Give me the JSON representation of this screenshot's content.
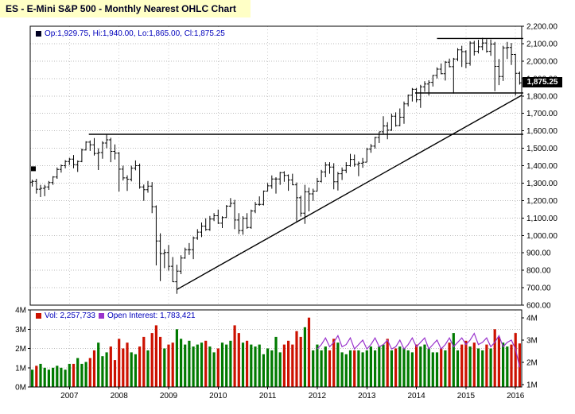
{
  "header": {
    "title": "ES - E-Mini S&P 500 - Monthly Nearest OHLC Chart",
    "banner_color": "#ffffc6"
  },
  "main_chart": {
    "legend": "Op:1,929.75, Hi:1,940.00, Lo:1,865.00, Cl:1,875.25",
    "last_price_label": "1,875.25",
    "left_marker_price": 1382,
    "y_ticks": [
      "2,200.00",
      "2,100.00",
      "2,000.00",
      "1,900.00",
      "1,800.00",
      "1,700.00",
      "1,600.00",
      "1,500.00",
      "1,400.00",
      "1,300.00",
      "1,200.00",
      "1,100.00",
      "1,000.00",
      "900.00",
      "800.00",
      "700.00",
      "600.00"
    ]
  },
  "volume_chart": {
    "vol_label": "Vol: 2,257,733",
    "oi_label": "Open Interest: 1,783,421",
    "left_ticks": [
      "4M",
      "3M",
      "2M",
      "1M",
      "0M"
    ],
    "right_ticks": [
      "4M",
      "3M",
      "2M",
      "1M"
    ]
  },
  "x_axis": {
    "years": [
      "2007",
      "2008",
      "2009",
      "2010",
      "2011",
      "2012",
      "2013",
      "2014",
      "2015",
      "2016"
    ]
  },
  "colors": {
    "up": "#007a00",
    "down": "#cc1100",
    "oi_line": "#9933cc",
    "ohlc": "#000000",
    "trendline": "#000000",
    "legend_text": "#0000bb"
  },
  "chart_data": [
    {
      "type": "ohlc",
      "title": "ES - E-Mini S&P 500 - Monthly Nearest OHLC Chart",
      "freq": "monthly",
      "x_start": "2006-04",
      "x_end": "2016-02",
      "first_month": 4,
      "first_year": 2006,
      "ylim": [
        600,
        2200
      ],
      "last": {
        "open": 1929.75,
        "high": 1940.0,
        "low": 1865.0,
        "close": 1875.25
      },
      "bars": [
        [
          1305,
          1320,
          1280,
          1310
        ],
        [
          1310,
          1325,
          1240,
          1265
        ],
        [
          1265,
          1290,
          1220,
          1270
        ],
        [
          1270,
          1290,
          1225,
          1278
        ],
        [
          1278,
          1312,
          1261,
          1303
        ],
        [
          1303,
          1340,
          1290,
          1335
        ],
        [
          1335,
          1390,
          1325,
          1378
        ],
        [
          1378,
          1407,
          1360,
          1400
        ],
        [
          1400,
          1432,
          1385,
          1424
        ],
        [
          1424,
          1445,
          1404,
          1438
        ],
        [
          1438,
          1461,
          1385,
          1406
        ],
        [
          1406,
          1430,
          1364,
          1424
        ],
        [
          1424,
          1498,
          1420,
          1490
        ],
        [
          1490,
          1540,
          1487,
          1535
        ],
        [
          1535,
          1545,
          1485,
          1520
        ],
        [
          1520,
          1558,
          1458,
          1470
        ],
        [
          1470,
          1500,
          1375,
          1475
        ],
        [
          1475,
          1540,
          1440,
          1530
        ],
        [
          1530,
          1580,
          1500,
          1548
        ],
        [
          1548,
          1560,
          1420,
          1482
        ],
        [
          1482,
          1522,
          1435,
          1472
        ],
        [
          1472,
          1478,
          1252,
          1380
        ],
        [
          1380,
          1400,
          1315,
          1330
        ],
        [
          1330,
          1345,
          1255,
          1322
        ],
        [
          1322,
          1400,
          1310,
          1386
        ],
        [
          1386,
          1430,
          1373,
          1400
        ],
        [
          1400,
          1412,
          1268,
          1278
        ],
        [
          1278,
          1292,
          1198,
          1262
        ],
        [
          1262,
          1312,
          1245,
          1283
        ],
        [
          1283,
          1306,
          1128,
          1165
        ],
        [
          1165,
          1172,
          828,
          968
        ],
        [
          968,
          1012,
          738,
          895
        ],
        [
          895,
          920,
          812,
          902
        ],
        [
          902,
          945,
          798,
          823
        ],
        [
          823,
          876,
          732,
          734
        ],
        [
          734,
          832,
          665,
          795
        ],
        [
          795,
          886,
          778,
          870
        ],
        [
          870,
          930,
          866,
          918
        ],
        [
          918,
          956,
          888,
          918
        ],
        [
          918,
          994,
          864,
          985
        ],
        [
          985,
          1036,
          975,
          1019
        ],
        [
          1019,
          1074,
          990,
          1053
        ],
        [
          1053,
          1098,
          1026,
          1034
        ],
        [
          1034,
          1112,
          1026,
          1094
        ],
        [
          1094,
          1128,
          1082,
          1113
        ],
        [
          1113,
          1148,
          1066,
          1070
        ],
        [
          1070,
          1110,
          1042,
          1103
        ],
        [
          1103,
          1174,
          1100,
          1168
        ],
        [
          1168,
          1214,
          1163,
          1184
        ],
        [
          1184,
          1204,
          1036,
          1088
        ],
        [
          1088,
          1128,
          1008,
          1028
        ],
        [
          1028,
          1110,
          1004,
          1098
        ],
        [
          1098,
          1128,
          1038,
          1046
        ],
        [
          1046,
          1148,
          1038,
          1140
        ],
        [
          1140,
          1192,
          1128,
          1178
        ],
        [
          1178,
          1224,
          1170,
          1178
        ],
        [
          1178,
          1258,
          1172,
          1254
        ],
        [
          1254,
          1300,
          1254,
          1284
        ],
        [
          1284,
          1344,
          1268,
          1324
        ],
        [
          1324,
          1334,
          1240,
          1324
        ],
        [
          1324,
          1364,
          1290,
          1360
        ],
        [
          1360,
          1368,
          1308,
          1344
        ],
        [
          1344,
          1350,
          1256,
          1318
        ],
        [
          1318,
          1354,
          1288,
          1290
        ],
        [
          1290,
          1304,
          1074,
          1216
        ],
        [
          1216,
          1228,
          1108,
          1128
        ],
        [
          1128,
          1290,
          1066,
          1250
        ],
        [
          1250,
          1274,
          1138,
          1238
        ],
        [
          1238,
          1268,
          1198,
          1254
        ],
        [
          1254,
          1330,
          1254,
          1310
        ],
        [
          1310,
          1376,
          1304,
          1364
        ],
        [
          1364,
          1420,
          1334,
          1404
        ],
        [
          1404,
          1420,
          1354,
          1392
        ],
        [
          1392,
          1414,
          1264,
          1308
        ],
        [
          1308,
          1364,
          1258,
          1354
        ],
        [
          1354,
          1390,
          1318,
          1374
        ],
        [
          1374,
          1420,
          1358,
          1400
        ],
        [
          1400,
          1468,
          1394,
          1436
        ],
        [
          1436,
          1464,
          1394,
          1408
        ],
        [
          1408,
          1424,
          1340,
          1414
        ],
        [
          1414,
          1444,
          1388,
          1420
        ],
        [
          1420,
          1502,
          1420,
          1495
        ],
        [
          1495,
          1524,
          1474,
          1512
        ],
        [
          1512,
          1566,
          1498,
          1562
        ],
        [
          1562,
          1594,
          1530,
          1594
        ],
        [
          1594,
          1684,
          1580,
          1628
        ],
        [
          1628,
          1650,
          1552,
          1604
        ],
        [
          1604,
          1698,
          1600,
          1684
        ],
        [
          1684,
          1706,
          1624,
          1630
        ],
        [
          1630,
          1728,
          1626,
          1678
        ],
        [
          1678,
          1768,
          1640,
          1754
        ],
        [
          1754,
          1808,
          1740,
          1804
        ],
        [
          1804,
          1846,
          1768,
          1838
        ],
        [
          1838,
          1846,
          1764,
          1778
        ],
        [
          1778,
          1864,
          1732,
          1852
        ],
        [
          1852,
          1884,
          1824,
          1868
        ],
        [
          1868,
          1890,
          1802,
          1878
        ],
        [
          1878,
          1920,
          1854,
          1918
        ],
        [
          1918,
          1964,
          1900,
          1954
        ],
        [
          1954,
          1986,
          1924,
          1928
        ],
        [
          1928,
          2000,
          1888,
          1994
        ],
        [
          1994,
          2014,
          1964,
          1968
        ],
        [
          1968,
          2018,
          1814,
          2012
        ],
        [
          2012,
          2074,
          2000,
          2064
        ],
        [
          2064,
          2088,
          1966,
          2054
        ],
        [
          2054,
          2062,
          1960,
          1988
        ],
        [
          1988,
          2114,
          1974,
          2104
        ],
        [
          2104,
          2116,
          2032,
          2056
        ],
        [
          2056,
          2122,
          2044,
          2082
        ],
        [
          2082,
          2134,
          2062,
          2104
        ],
        [
          2104,
          2126,
          2048,
          2056
        ],
        [
          2056,
          2124,
          2030,
          2098
        ],
        [
          2098,
          2110,
          1828,
          1970
        ],
        [
          1970,
          2012,
          1862,
          1912
        ],
        [
          1912,
          2088,
          1886,
          2076
        ],
        [
          2076,
          2110,
          2012,
          2078
        ],
        [
          2078,
          2104,
          1978,
          2038
        ],
        [
          2038,
          2042,
          1802,
          1930
        ],
        [
          1929.75,
          1940,
          1865,
          1875.25
        ]
      ],
      "trendlines": [
        {
          "kind": "horizontal",
          "price": 2130,
          "from": 98,
          "to": 121
        },
        {
          "kind": "horizontal",
          "price": 1817,
          "from": 92.7,
          "to": 121
        },
        {
          "kind": "horizontal",
          "price": 1580,
          "from": 13.7,
          "to": 121
        },
        {
          "kind": "diagonal",
          "from": 35,
          "price_from": 690,
          "to": 119,
          "price_to": 1804
        }
      ]
    },
    {
      "type": "bar",
      "name": "Volume with Open Interest overlay",
      "units": "millions of contracts",
      "left_max": 4,
      "right_min": 1,
      "right_max": 4,
      "current_volume": 2257733,
      "current_open_interest": 1783421,
      "values_m": [
        0.9,
        1.1,
        1.2,
        1.0,
        0.9,
        1.0,
        1.1,
        1.0,
        0.9,
        1.2,
        1.2,
        1.5,
        1.2,
        1.3,
        1.5,
        1.9,
        2.3,
        1.6,
        1.8,
        2.1,
        1.4,
        2.5,
        2.0,
        2.3,
        1.8,
        1.7,
        2.1,
        2.6,
        1.9,
        2.8,
        3.2,
        2.6,
        2.0,
        2.2,
        2.3,
        3.0,
        2.5,
        2.2,
        2.4,
        2.1,
        2.2,
        2.3,
        2.4,
        2.1,
        1.8,
        2.0,
        2.3,
        2.2,
        2.4,
        3.2,
        2.8,
        2.3,
        2.4,
        2.2,
        2.1,
        2.2,
        1.7,
        2.0,
        1.9,
        2.6,
        1.8,
        2.2,
        2.4,
        2.2,
        2.9,
        2.6,
        3.1,
        3.6,
        1.9,
        2.2,
        1.9,
        2.1,
        1.9,
        2.5,
        2.3,
        1.8,
        1.7,
        1.9,
        1.9,
        1.9,
        1.8,
        1.9,
        2.1,
        1.9,
        2.1,
        2.2,
        2.5,
        1.9,
        2.0,
        2.1,
        2.0,
        1.9,
        1.8,
        2.2,
        2.1,
        2.2,
        2.0,
        1.8,
        1.8,
        2.0,
        1.9,
        2.3,
        2.8,
        1.9,
        2.2,
        2.4,
        2.1,
        2.3,
        2.0,
        1.9,
        2.2,
        2.0,
        3.0,
        2.6,
        2.3,
        2.1,
        2.2,
        2.8,
        2.26
      ],
      "open_interest": {
        "start_index": 69,
        "values_m": [
          2.6,
          2.8,
          3.1,
          2.7,
          2.9,
          3.2,
          2.7,
          2.8,
          3.1,
          2.6,
          2.8,
          3.0,
          2.6,
          2.8,
          3.1,
          2.7,
          2.8,
          3.0,
          2.6,
          2.7,
          3.0,
          2.6,
          2.8,
          3.1,
          2.7,
          2.9,
          3.1,
          2.6,
          2.8,
          3.0,
          2.6,
          2.8,
          3.1,
          2.7,
          2.9,
          3.1,
          2.8,
          3.0,
          3.3,
          2.8,
          2.9,
          3.1,
          2.7,
          2.9,
          3.2,
          2.7,
          2.9,
          3.0,
          2.6,
          1.78
        ]
      }
    }
  ]
}
